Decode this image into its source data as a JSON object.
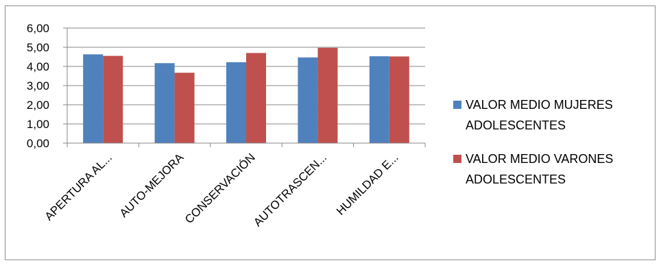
{
  "chart_data": {
    "type": "bar",
    "categories": [
      "APERTURA AL...",
      "AUTO-MEJORA",
      "CONSERVACIÓN",
      "AUTOTRASCEN...",
      "HUMILDAD E..."
    ],
    "series": [
      {
        "name": "VALOR MEDIO MUJERES ADOLESCENTES",
        "name_lines": [
          "VALOR MEDIO MUJERES",
          "ADOLESCENTES"
        ],
        "color": "#4f81bd",
        "values": [
          4.63,
          4.17,
          4.22,
          4.47,
          4.53
        ]
      },
      {
        "name": "VALOR MEDIO VARONES ADOLESCENTES",
        "name_lines": [
          "VALOR MEDIO VARONES",
          "ADOLESCENTES"
        ],
        "color": "#c0504d",
        "values": [
          4.55,
          3.67,
          4.7,
          4.97,
          4.52
        ]
      }
    ],
    "ylim": [
      0,
      6
    ],
    "yticks": [
      "0,00",
      "1,00",
      "2,00",
      "3,00",
      "4,00",
      "5,00",
      "6,00"
    ],
    "grid": true,
    "legend_position": "right",
    "title": "",
    "xlabel": "",
    "ylabel": ""
  }
}
